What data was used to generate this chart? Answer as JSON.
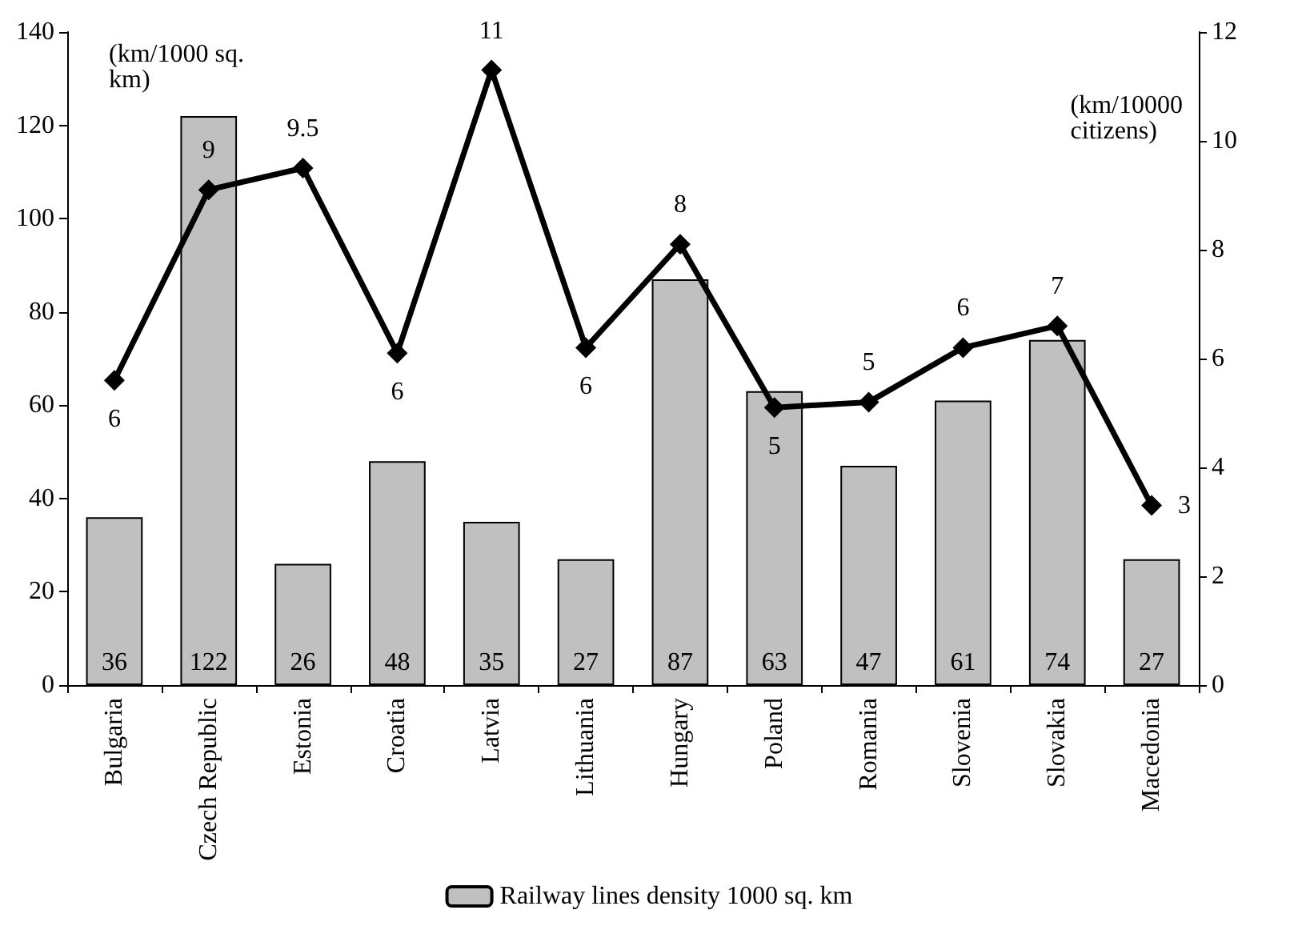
{
  "chart_data": {
    "type": "bar",
    "categories": [
      "Bulgaria",
      "Czech Republic",
      "Estonia",
      "Croatia",
      "Latvia",
      "Lithuania",
      "Hungary",
      "Poland",
      "Romania",
      "Slovenia",
      "Slovakia",
      "Macedonia"
    ],
    "series": [
      {
        "name": "Railway lines density 1000 sq. km",
        "color": "#c0c0c0",
        "values": [
          36,
          122,
          26,
          48,
          35,
          27,
          87,
          63,
          47,
          61,
          74,
          27
        ],
        "data_labels": true
      },
      {
        "type": "line",
        "axis": "y2",
        "color": "#000000",
        "marker": "diamond",
        "line_style": "solid",
        "values": [
          5.6,
          9.1,
          9.5,
          6.1,
          11.3,
          6.2,
          8.1,
          5.1,
          5.2,
          6.2,
          6.6,
          3.3
        ],
        "value_labels": [
          "6",
          "9",
          "9.5",
          "6",
          "11",
          "6",
          "8",
          "5",
          "5",
          "6",
          "7",
          "3"
        ]
      }
    ],
    "ylabel": "(km/1000 sq. km)",
    "y2label": "(km/10000 citizens)",
    "ylim": [
      0,
      140
    ],
    "yticks": [
      0,
      20,
      40,
      60,
      80,
      100,
      120,
      140
    ],
    "y2lim": [
      0,
      12
    ],
    "y2ticks": [
      0,
      2,
      4,
      6,
      8,
      10,
      12
    ],
    "grid": false,
    "legend": "bottom"
  }
}
